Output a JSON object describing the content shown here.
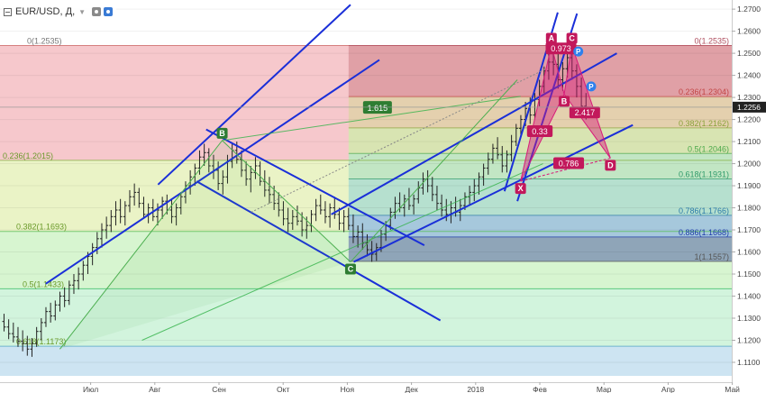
{
  "header": {
    "symbol": "EUR/USD, Д,",
    "collapse_icon": "minus-square-icon",
    "dropdown_icon": "chevron-down-icon",
    "settings_icon": "eye-icon",
    "gear_icon": "gear-icon"
  },
  "chart_data": {
    "type": "candlestick",
    "title": "",
    "y_scale": {
      "min": 1.1055,
      "max": 1.2725
    },
    "y_ticks": [
      "1.2700",
      "1.2600",
      "1.2500",
      "1.2400",
      "1.2300",
      "1.2200",
      "1.2100",
      "1.2000",
      "1.1900",
      "1.1800",
      "1.1700",
      "1.1600",
      "1.1500",
      "1.1400",
      "1.1300",
      "1.1200",
      "1.1100"
    ],
    "x_labels": [
      {
        "label": "Июл",
        "t": 0.5
      },
      {
        "label": "Авг",
        "t": 1.5
      },
      {
        "label": "Сен",
        "t": 2.5
      },
      {
        "label": "Окт",
        "t": 3.5
      },
      {
        "label": "Ноя",
        "t": 4.5
      },
      {
        "label": "Дек",
        "t": 5.5
      },
      {
        "label": "2018",
        "t": 6.5
      },
      {
        "label": "Фев",
        "t": 7.5
      },
      {
        "label": "Мар",
        "t": 8.5
      },
      {
        "label": "Апр",
        "t": 9.5
      },
      {
        "label": "Май",
        "t": 10.5
      }
    ],
    "last_price": "1.2256",
    "last_price_value": 1.2256,
    "fib_left": {
      "t_start": -0.2,
      "t_end": 10.8,
      "levels": [
        {
          "label": "0(1.2535)",
          "value": 1.2535,
          "fill": "#f6c8cc"
        },
        {
          "label": "0.236(1.2015)",
          "value": 1.2015,
          "fill": "#eaf3c6"
        },
        {
          "label": "0.382(1.1693)",
          "value": 1.1693,
          "fill": "#d7f5d0"
        },
        {
          "label": "0.5(1.1433)",
          "value": 1.1433,
          "fill": "#d2f4dd"
        },
        {
          "label": "0.618(1.1173)",
          "value": 1.1173,
          "fill": "#cde4f2"
        }
      ]
    },
    "fib_right": {
      "t_start": 4.52,
      "t_end": 10.8,
      "levels": [
        {
          "label": "0(1.2535)",
          "value": 1.2535,
          "fill": "#e0a0a6"
        },
        {
          "label": "0.236(1.2304)",
          "value": 1.2304,
          "fill": "#e4d0ae"
        },
        {
          "label": "0.382(1.2162)",
          "value": 1.2162,
          "fill": "#d8e4b2"
        },
        {
          "label": "0.5(1.2046)",
          "value": 1.2046,
          "fill": "#c2e6c4"
        },
        {
          "label": "0.618(1.1931)",
          "value": 1.1931,
          "fill": "#b6e0cf"
        },
        {
          "label": "0.786(1.1766)",
          "value": 1.1766,
          "fill": "#a6c8dc"
        },
        {
          "label": "0.886(1.1668)",
          "value": 1.1668,
          "fill": "#8fa5b8"
        },
        {
          "label": "1(1.1557)",
          "value": 1.1557,
          "fill": ""
        }
      ]
    },
    "trend_lines": [
      {
        "name": "channel-up-lower",
        "p1": [
          -0.2,
          1.1456
        ],
        "p2": [
          5.0,
          1.247
        ],
        "color": "#1a2fd8"
      },
      {
        "name": "channel-up-upper",
        "p1": [
          1.55,
          1.1905
        ],
        "p2": [
          4.55,
          1.272
        ],
        "color": "#1a2fd8"
      },
      {
        "name": "channel-down-upper",
        "p1": [
          2.3,
          1.2155
        ],
        "p2": [
          5.7,
          1.163
        ],
        "color": "#1a2fd8"
      },
      {
        "name": "channel-down-lower",
        "p1": [
          2.15,
          1.192
        ],
        "p2": [
          5.95,
          1.129
        ],
        "color": "#1a2fd8"
      },
      {
        "name": "wedge-lower",
        "p1": [
          4.6,
          1.1555
        ],
        "p2": [
          8.95,
          1.2175
        ],
        "color": "#1a2fd8"
      },
      {
        "name": "wedge-upper",
        "p1": [
          4.25,
          1.177
        ],
        "p2": [
          8.7,
          1.25
        ],
        "color": "#1a2fd8"
      },
      {
        "name": "steep-left",
        "p1": [
          6.95,
          1.1875
        ],
        "p2": [
          7.78,
          1.2685
        ],
        "color": "#1a2fd8"
      },
      {
        "name": "steep-right",
        "p1": [
          7.15,
          1.183
        ],
        "p2": [
          8.08,
          1.268
        ],
        "color": "#1a2fd8"
      },
      {
        "name": "green-long",
        "p1": [
          1.3,
          1.12
        ],
        "p2": [
          7.55,
          1.2
        ],
        "color": "#34b34a"
      },
      {
        "name": "green-fan",
        "p1": [
          2.55,
          1.2105
        ],
        "p2": [
          7.2,
          1.2305
        ],
        "color": "#34b34a"
      }
    ],
    "abc_pattern": {
      "color": "#2e7d32",
      "points": [
        {
          "label": "",
          "t": 0.02,
          "v": 1.116
        },
        {
          "label": "B",
          "t": 2.55,
          "v": 1.2105
        },
        {
          "label": "C",
          "t": 4.55,
          "v": 1.1555
        },
        {
          "label": "",
          "t": 7.15,
          "v": 1.238
        }
      ],
      "ratio_label": "1.615",
      "ratio_at": [
        4.97,
        1.2255
      ]
    },
    "harmonic": {
      "color": "#d81b7a",
      "points": [
        {
          "label": "X",
          "t": 7.2,
          "v": 1.192
        },
        {
          "label": "A",
          "t": 7.68,
          "v": 1.2535
        },
        {
          "label": "B",
          "t": 7.88,
          "v": 1.2315
        },
        {
          "label": "C",
          "t": 8.0,
          "v": 1.2535
        },
        {
          "label": "D",
          "t": 8.6,
          "v": 1.2025
        }
      ],
      "ratios": [
        {
          "label": "0.33",
          "t": 7.5,
          "v": 1.2145
        },
        {
          "label": "0.973",
          "t": 7.83,
          "v": 1.252
        },
        {
          "label": "2.417",
          "t": 8.2,
          "v": 1.223
        },
        {
          "label": "0.786",
          "t": 7.95,
          "v": 1.2
        }
      ]
    },
    "pivot_markers": [
      {
        "label": "P",
        "t": 8.1,
        "v": 1.2508
      },
      {
        "label": "P",
        "t": 8.3,
        "v": 1.235
      }
    ],
    "ohlc": [
      [
        1.1285,
        1.132,
        1.124,
        1.126
      ],
      [
        1.126,
        1.1295,
        1.1205,
        1.123
      ],
      [
        1.123,
        1.128,
        1.119,
        1.1215
      ],
      [
        1.1215,
        1.126,
        1.117,
        1.1195
      ],
      [
        1.1195,
        1.1245,
        1.115,
        1.1185
      ],
      [
        1.1185,
        1.122,
        1.113,
        1.116
      ],
      [
        1.116,
        1.121,
        1.1125,
        1.1185
      ],
      [
        1.1185,
        1.126,
        1.117,
        1.124
      ],
      [
        1.124,
        1.13,
        1.12,
        1.128
      ],
      [
        1.128,
        1.135,
        1.126,
        1.133
      ],
      [
        1.133,
        1.137,
        1.128,
        1.131
      ],
      [
        1.131,
        1.138,
        1.129,
        1.136
      ],
      [
        1.136,
        1.142,
        1.133,
        1.14
      ],
      [
        1.14,
        1.144,
        1.135,
        1.138
      ],
      [
        1.138,
        1.147,
        1.136,
        1.145
      ],
      [
        1.145,
        1.15,
        1.141,
        1.147
      ],
      [
        1.147,
        1.153,
        1.143,
        1.15
      ],
      [
        1.15,
        1.156,
        1.147,
        1.154
      ],
      [
        1.154,
        1.16,
        1.15,
        1.158
      ],
      [
        1.158,
        1.164,
        1.154,
        1.162
      ],
      [
        1.162,
        1.169,
        1.159,
        1.166
      ],
      [
        1.166,
        1.173,
        1.162,
        1.17
      ],
      [
        1.17,
        1.176,
        1.166,
        1.172
      ],
      [
        1.172,
        1.179,
        1.169,
        1.176
      ],
      [
        1.176,
        1.183,
        1.172,
        1.179
      ],
      [
        1.179,
        1.184,
        1.173,
        1.176
      ],
      [
        1.176,
        1.183,
        1.172,
        1.181
      ],
      [
        1.181,
        1.188,
        1.178,
        1.185
      ],
      [
        1.185,
        1.191,
        1.181,
        1.187
      ],
      [
        1.187,
        1.189,
        1.18,
        1.182
      ],
      [
        1.182,
        1.185,
        1.175,
        1.177
      ],
      [
        1.177,
        1.182,
        1.173,
        1.18
      ],
      [
        1.18,
        1.184,
        1.174,
        1.176
      ],
      [
        1.176,
        1.182,
        1.172,
        1.179
      ],
      [
        1.179,
        1.185,
        1.175,
        1.183
      ],
      [
        1.183,
        1.186,
        1.177,
        1.179
      ],
      [
        1.179,
        1.184,
        1.173,
        1.176
      ],
      [
        1.176,
        1.182,
        1.172,
        1.18
      ],
      [
        1.18,
        1.187,
        1.177,
        1.185
      ],
      [
        1.185,
        1.192,
        1.182,
        1.19
      ],
      [
        1.19,
        1.197,
        1.186,
        1.194
      ],
      [
        1.194,
        1.2,
        1.19,
        1.198
      ],
      [
        1.198,
        1.206,
        1.195,
        1.203
      ],
      [
        1.203,
        1.209,
        1.199,
        1.205
      ],
      [
        1.205,
        1.207,
        1.196,
        1.199
      ],
      [
        1.199,
        1.204,
        1.193,
        1.197
      ],
      [
        1.197,
        1.201,
        1.188,
        1.191
      ],
      [
        1.191,
        1.197,
        1.186,
        1.194
      ],
      [
        1.194,
        1.204,
        1.191,
        1.201
      ],
      [
        1.201,
        1.209,
        1.198,
        1.206
      ],
      [
        1.206,
        1.21,
        1.2,
        1.202
      ],
      [
        1.202,
        1.206,
        1.194,
        1.197
      ],
      [
        1.197,
        1.201,
        1.19,
        1.193
      ],
      [
        1.193,
        1.199,
        1.187,
        1.196
      ],
      [
        1.196,
        1.203,
        1.193,
        1.199
      ],
      [
        1.199,
        1.201,
        1.19,
        1.192
      ],
      [
        1.192,
        1.197,
        1.185,
        1.188
      ],
      [
        1.188,
        1.194,
        1.182,
        1.186
      ],
      [
        1.186,
        1.19,
        1.179,
        1.182
      ],
      [
        1.182,
        1.187,
        1.176,
        1.179
      ],
      [
        1.179,
        1.183,
        1.172,
        1.175
      ],
      [
        1.175,
        1.18,
        1.169,
        1.173
      ],
      [
        1.173,
        1.179,
        1.17,
        1.176
      ],
      [
        1.176,
        1.181,
        1.172,
        1.174
      ],
      [
        1.174,
        1.178,
        1.167,
        1.17
      ],
      [
        1.17,
        1.176,
        1.166,
        1.172
      ],
      [
        1.172,
        1.179,
        1.169,
        1.177
      ],
      [
        1.177,
        1.184,
        1.174,
        1.181
      ],
      [
        1.181,
        1.186,
        1.177,
        1.179
      ],
      [
        1.179,
        1.183,
        1.173,
        1.176
      ],
      [
        1.176,
        1.182,
        1.171,
        1.18
      ],
      [
        1.18,
        1.185,
        1.175,
        1.177
      ],
      [
        1.177,
        1.18,
        1.17,
        1.173
      ],
      [
        1.173,
        1.179,
        1.169,
        1.176
      ],
      [
        1.176,
        1.18,
        1.17,
        1.172
      ],
      [
        1.172,
        1.177,
        1.164,
        1.167
      ],
      [
        1.167,
        1.172,
        1.162,
        1.169
      ],
      [
        1.169,
        1.173,
        1.161,
        1.164
      ],
      [
        1.164,
        1.168,
        1.158,
        1.161
      ],
      [
        1.161,
        1.165,
        1.1555,
        1.159
      ],
      [
        1.159,
        1.164,
        1.156,
        1.162
      ],
      [
        1.162,
        1.17,
        1.16,
        1.168
      ],
      [
        1.168,
        1.174,
        1.165,
        1.172
      ],
      [
        1.172,
        1.18,
        1.17,
        1.178
      ],
      [
        1.178,
        1.185,
        1.175,
        1.182
      ],
      [
        1.182,
        1.187,
        1.178,
        1.18
      ],
      [
        1.18,
        1.186,
        1.176,
        1.184
      ],
      [
        1.184,
        1.189,
        1.179,
        1.181
      ],
      [
        1.181,
        1.186,
        1.177,
        1.184
      ],
      [
        1.184,
        1.192,
        1.182,
        1.189
      ],
      [
        1.189,
        1.196,
        1.186,
        1.193
      ],
      [
        1.193,
        1.197,
        1.187,
        1.19
      ],
      [
        1.19,
        1.194,
        1.183,
        1.186
      ],
      [
        1.186,
        1.19,
        1.179,
        1.182
      ],
      [
        1.182,
        1.186,
        1.176,
        1.179
      ],
      [
        1.179,
        1.184,
        1.174,
        1.177
      ],
      [
        1.177,
        1.183,
        1.173,
        1.18
      ],
      [
        1.18,
        1.185,
        1.176,
        1.178
      ],
      [
        1.178,
        1.184,
        1.174,
        1.181
      ],
      [
        1.181,
        1.187,
        1.179,
        1.185
      ],
      [
        1.185,
        1.19,
        1.181,
        1.187
      ],
      [
        1.187,
        1.193,
        1.183,
        1.19
      ],
      [
        1.19,
        1.196,
        1.186,
        1.194
      ],
      [
        1.194,
        1.2,
        1.19,
        1.198
      ],
      [
        1.198,
        1.205,
        1.195,
        1.202
      ],
      [
        1.202,
        1.209,
        1.2,
        1.207
      ],
      [
        1.207,
        1.212,
        1.202,
        1.204
      ],
      [
        1.204,
        1.208,
        1.196,
        1.199
      ],
      [
        1.199,
        1.206,
        1.196,
        1.204
      ],
      [
        1.204,
        1.213,
        1.201,
        1.21
      ],
      [
        1.21,
        1.218,
        1.208,
        1.216
      ],
      [
        1.216,
        1.222,
        1.212,
        1.22
      ],
      [
        1.22,
        1.228,
        1.217,
        1.225
      ],
      [
        1.225,
        1.23,
        1.218,
        1.222
      ],
      [
        1.222,
        1.232,
        1.22,
        1.229
      ],
      [
        1.229,
        1.238,
        1.226,
        1.235
      ],
      [
        1.235,
        1.244,
        1.232,
        1.242
      ],
      [
        1.242,
        1.25,
        1.238,
        1.246
      ],
      [
        1.246,
        1.2535,
        1.24,
        1.245
      ],
      [
        1.245,
        1.25,
        1.234,
        1.238
      ],
      [
        1.238,
        1.246,
        1.233,
        1.243
      ],
      [
        1.243,
        1.252,
        1.239,
        1.248
      ],
      [
        1.248,
        1.251,
        1.238,
        1.242
      ],
      [
        1.242,
        1.245,
        1.23,
        1.235
      ],
      [
        1.235,
        1.239,
        1.222,
        1.226
      ],
      [
        1.226,
        1.232,
        1.22,
        1.2256
      ]
    ]
  }
}
